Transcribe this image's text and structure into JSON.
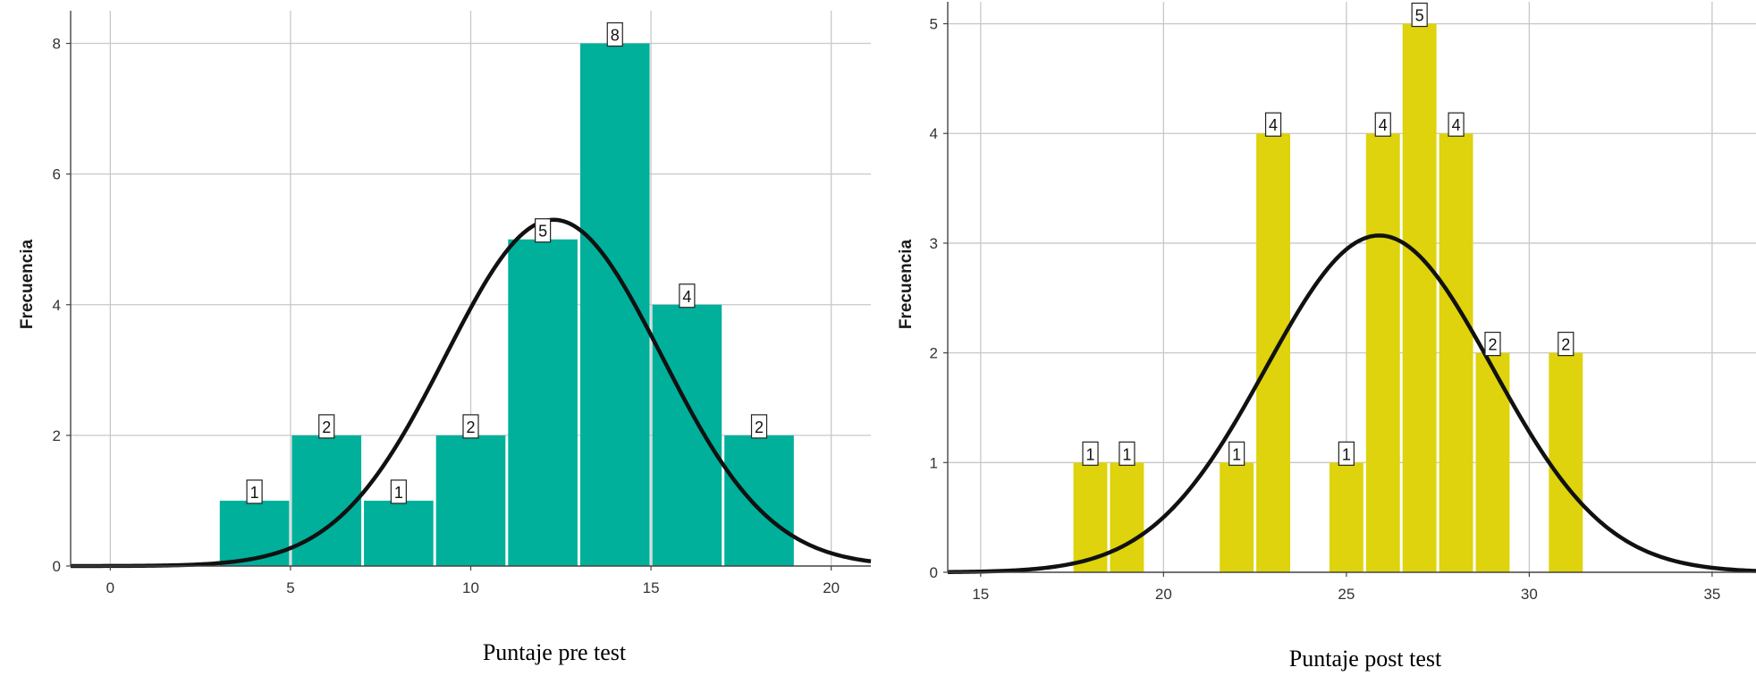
{
  "chart_data": [
    {
      "type": "bar",
      "xlabel": "Puntaje pre test",
      "ylabel": "Frecuencia",
      "xlim": [
        -1.1,
        21.1
      ],
      "ylim": [
        0,
        8.5
      ],
      "x_ticks": [
        0,
        5,
        10,
        15,
        20
      ],
      "y_ticks": [
        0,
        2,
        4,
        6,
        8
      ],
      "bin_width": 2,
      "bins": [
        {
          "center": 4,
          "value": 1
        },
        {
          "center": 6,
          "value": 2
        },
        {
          "center": 8,
          "value": 1
        },
        {
          "center": 10,
          "value": 2
        },
        {
          "center": 12,
          "value": 5
        },
        {
          "center": 14,
          "value": 8
        },
        {
          "center": 16,
          "value": 4
        },
        {
          "center": 18,
          "value": 2
        }
      ],
      "normal_curve": {
        "mean": 12.3,
        "sd": 3.0,
        "peak": 5.3
      },
      "bar_color": "#00B09B",
      "grid": true
    },
    {
      "type": "bar",
      "xlabel": "Puntaje post test",
      "ylabel": "Frecuencia",
      "xlim": [
        14.1,
        36.2
      ],
      "ylim": [
        0,
        5.2
      ],
      "x_ticks": [
        15,
        20,
        25,
        30,
        35
      ],
      "y_ticks": [
        0,
        1,
        2,
        3,
        4,
        5
      ],
      "bin_width": 1,
      "bins": [
        {
          "center": 18,
          "value": 1
        },
        {
          "center": 19,
          "value": 1
        },
        {
          "center": 22,
          "value": 1
        },
        {
          "center": 23,
          "value": 4
        },
        {
          "center": 25,
          "value": 1
        },
        {
          "center": 26,
          "value": 4
        },
        {
          "center": 27,
          "value": 5
        },
        {
          "center": 28,
          "value": 4
        },
        {
          "center": 29,
          "value": 2
        },
        {
          "center": 31,
          "value": 2
        }
      ],
      "normal_curve": {
        "mean": 25.9,
        "sd": 3.1,
        "peak": 3.07
      },
      "bar_color": "#DED30C",
      "grid": true
    }
  ]
}
